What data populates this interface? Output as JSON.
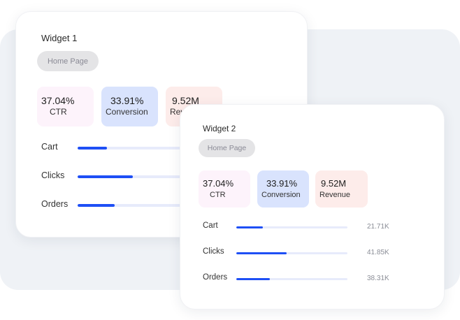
{
  "colors": {
    "accent": "#1e4ff5",
    "ctr_bg": "#fdf3fb",
    "conversion_bg": "#d9e3fd",
    "revenue_bg": "#fdecea"
  },
  "widget1": {
    "title": "Widget 1",
    "pill": "Home Page",
    "kpis": [
      {
        "value": "37.04%",
        "label": "CTR"
      },
      {
        "value": "33.91%",
        "label": "Conversion"
      },
      {
        "value": "9.52M",
        "label": "Revenue"
      }
    ],
    "rows": [
      {
        "label": "Cart",
        "progress_percent": 24
      },
      {
        "label": "Clicks",
        "progress_percent": 45
      },
      {
        "label": "Orders",
        "progress_percent": 30
      }
    ]
  },
  "widget2": {
    "title": "Widget 2",
    "pill": "Home Page",
    "kpis": [
      {
        "value": "37.04%",
        "label": "CTR"
      },
      {
        "value": "33.91%",
        "label": "Conversion"
      },
      {
        "value": "9.52M",
        "label": "Revenue"
      }
    ],
    "rows": [
      {
        "label": "Cart",
        "value": "21.71K",
        "progress_percent": 24
      },
      {
        "label": "Clicks",
        "value": "41.85K",
        "progress_percent": 45
      },
      {
        "label": "Orders",
        "value": "38.31K",
        "progress_percent": 30
      }
    ]
  }
}
